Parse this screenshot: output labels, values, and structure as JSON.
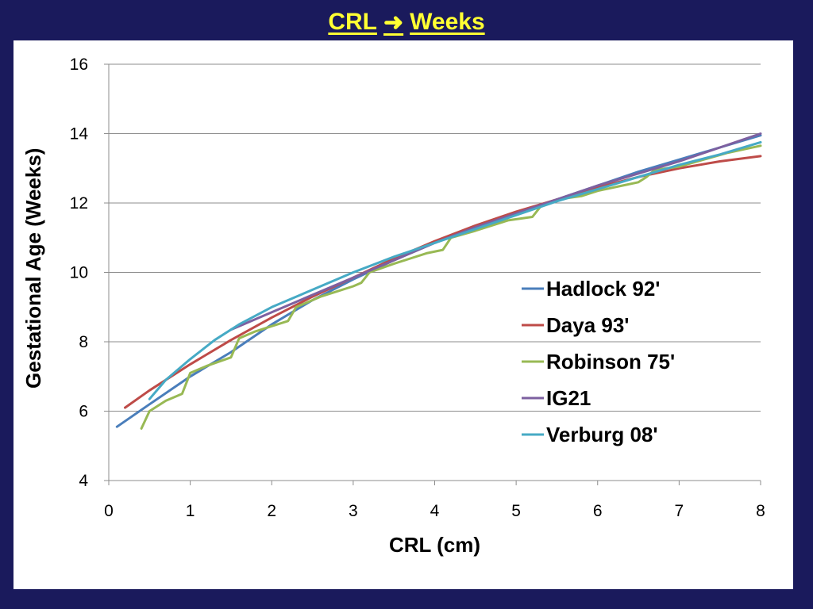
{
  "slide": {
    "title_left": "CRL",
    "title_right": "Weeks",
    "title_color": "#ffff33",
    "background": "#1a1a5c"
  },
  "chart_data": {
    "type": "line",
    "xlabel": "CRL (cm)",
    "ylabel": "Gestational Age (Weeks)",
    "xlim": [
      0,
      8
    ],
    "ylim": [
      4,
      16
    ],
    "xticks": [
      0,
      1,
      2,
      3,
      4,
      5,
      6,
      7,
      8
    ],
    "yticks": [
      4,
      6,
      8,
      10,
      12,
      14,
      16
    ],
    "grid": "horizontal",
    "legend_position": "right-center",
    "series": [
      {
        "name": "Hadlock 92'",
        "color": "#4a7ebb",
        "x": [
          0.1,
          0.5,
          1,
          1.5,
          2,
          2.5,
          3,
          3.5,
          4,
          4.5,
          5,
          5.5,
          6,
          6.5,
          7,
          7.5,
          8
        ],
        "y": [
          5.55,
          6.2,
          7.0,
          7.7,
          8.5,
          9.2,
          9.8,
          10.35,
          10.85,
          11.3,
          11.7,
          12.1,
          12.5,
          12.9,
          13.25,
          13.6,
          13.95
        ]
      },
      {
        "name": "Daya 93'",
        "color": "#be4b48",
        "x": [
          0.2,
          0.5,
          1,
          1.5,
          2,
          2.5,
          3,
          3.5,
          4,
          4.5,
          5,
          5.5,
          6,
          6.5,
          7,
          7.5,
          8
        ],
        "y": [
          6.1,
          6.6,
          7.35,
          8.05,
          8.7,
          9.3,
          9.85,
          10.4,
          10.9,
          11.35,
          11.75,
          12.1,
          12.45,
          12.75,
          13.0,
          13.2,
          13.35
        ]
      },
      {
        "name": "Robinson 75'",
        "color": "#98b954",
        "x": [
          0.4,
          0.5,
          0.7,
          0.9,
          1.0,
          1.2,
          1.5,
          1.6,
          1.8,
          2.0,
          2.2,
          2.3,
          2.6,
          2.8,
          3.0,
          3.1,
          3.2,
          3.5,
          3.7,
          3.9,
          4.1,
          4.2,
          4.5,
          4.7,
          4.9,
          5.2,
          5.3,
          5.5,
          5.8,
          6.0,
          6.3,
          6.5,
          6.6,
          6.7,
          7.0,
          7.3,
          7.6,
          7.8,
          8.0
        ],
        "y": [
          5.5,
          6.0,
          6.3,
          6.5,
          7.1,
          7.3,
          7.55,
          8.1,
          8.3,
          8.45,
          8.6,
          9.0,
          9.3,
          9.45,
          9.6,
          9.7,
          10.0,
          10.25,
          10.4,
          10.55,
          10.65,
          11.0,
          11.2,
          11.35,
          11.5,
          11.6,
          11.9,
          12.1,
          12.2,
          12.35,
          12.5,
          12.6,
          12.75,
          12.95,
          13.05,
          13.25,
          13.45,
          13.55,
          13.65
        ]
      },
      {
        "name": "IG21",
        "color": "#7d60a0",
        "x": [
          1.5,
          2,
          2.5,
          3,
          3.5,
          4,
          4.5,
          5,
          5.5,
          6,
          6.5,
          7,
          7.5,
          8
        ],
        "y": [
          8.35,
          8.85,
          9.35,
          9.85,
          10.35,
          10.85,
          11.3,
          11.7,
          12.1,
          12.5,
          12.85,
          13.2,
          13.6,
          14.0
        ]
      },
      {
        "name": "Verburg 08'",
        "color": "#46aac5",
        "x": [
          0.5,
          0.7,
          1,
          1.3,
          1.6,
          2,
          2.5,
          3,
          3.5,
          4,
          4.5,
          5,
          5.5,
          6,
          6.5,
          7,
          7.5,
          8
        ],
        "y": [
          6.35,
          6.9,
          7.5,
          8.05,
          8.5,
          9.0,
          9.5,
          10.0,
          10.45,
          10.85,
          11.25,
          11.65,
          12.05,
          12.4,
          12.75,
          13.1,
          13.4,
          13.75
        ]
      }
    ]
  }
}
